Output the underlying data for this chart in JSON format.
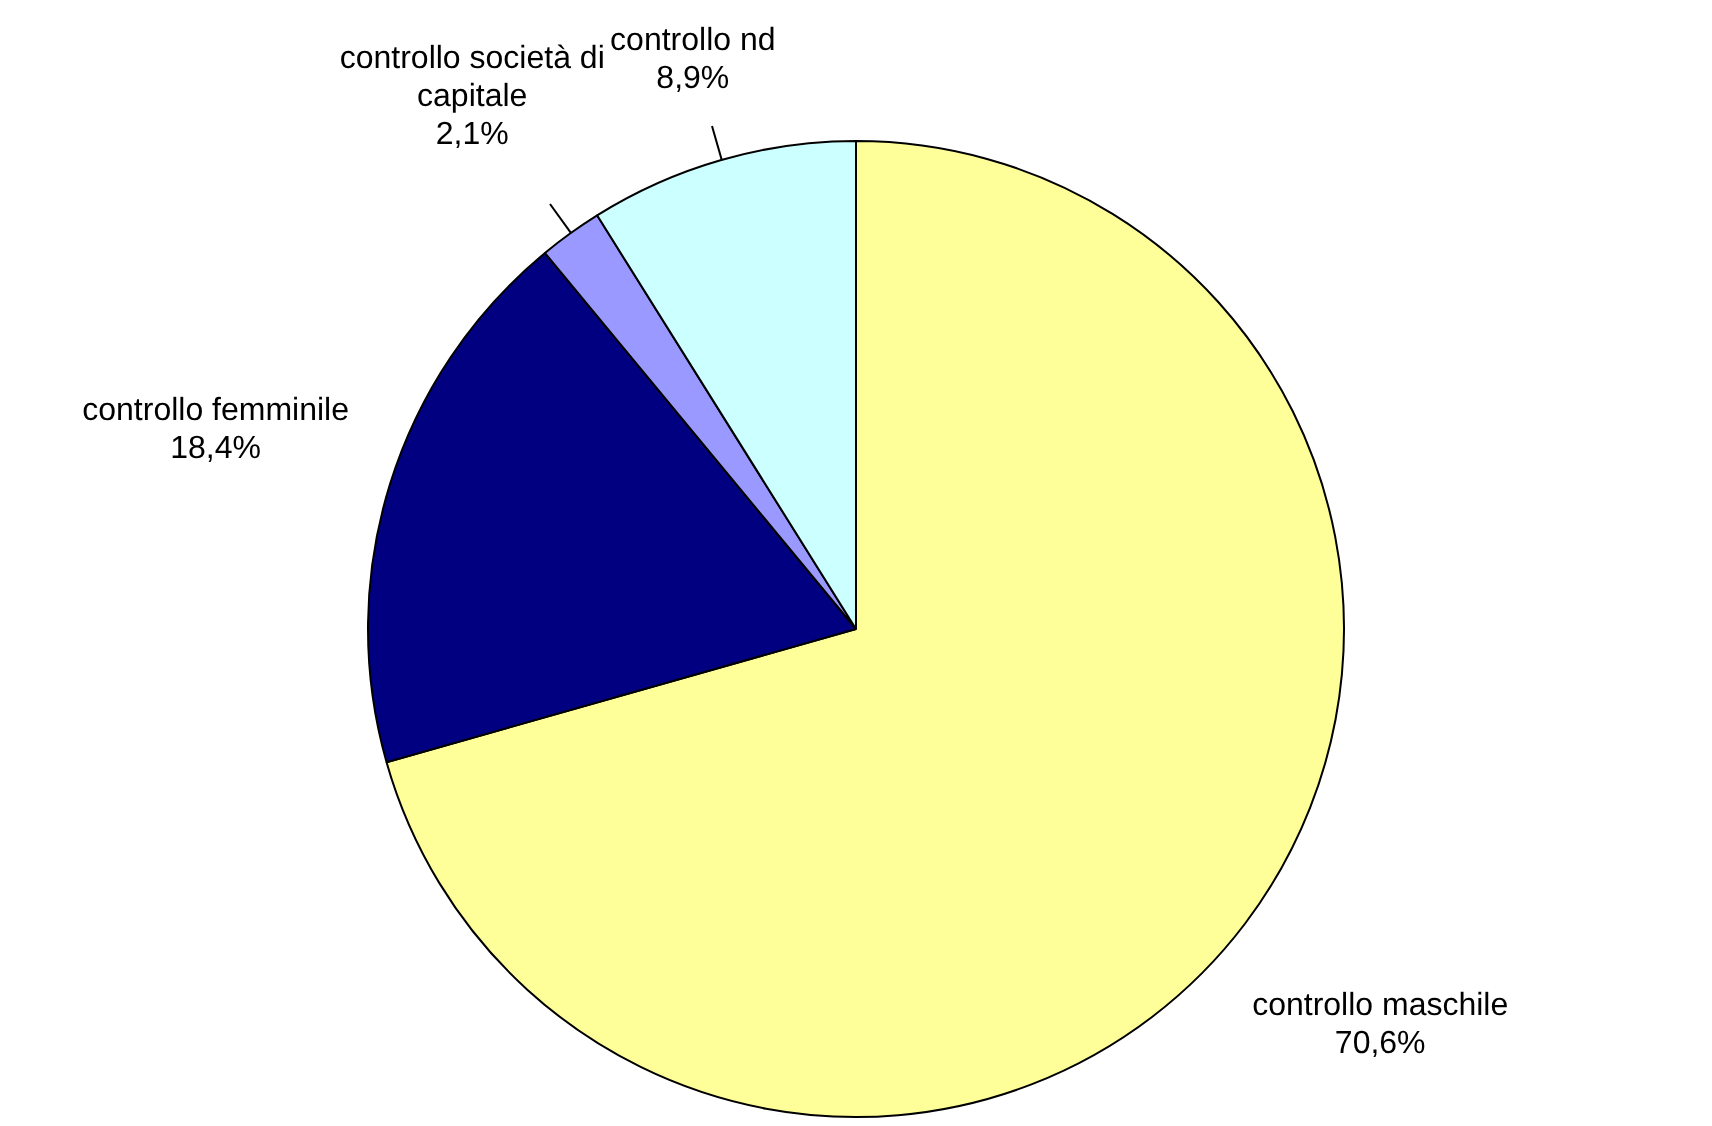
{
  "chart_data": {
    "type": "pie",
    "categories": [
      "controllo maschile",
      "controllo femminile",
      "controllo società di capitale",
      "controllo nd"
    ],
    "values": [
      70.6,
      18.4,
      2.1,
      8.9
    ],
    "colors": [
      "#ffff99",
      "#000080",
      "#9999ff",
      "#ccffff"
    ],
    "value_labels": [
      "70,6%",
      "18,4%",
      "2,1%",
      "8,9%"
    ],
    "legend": false
  }
}
